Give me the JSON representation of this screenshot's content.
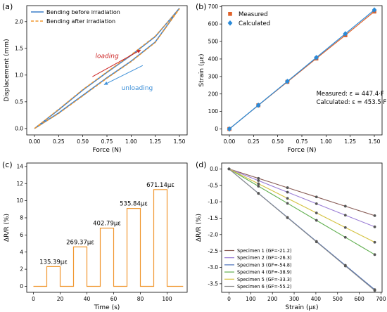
{
  "chart_data": [
    {
      "panel": "(a)",
      "type": "line",
      "xlabel": "Force (N)",
      "ylabel": "Displacement (mm)",
      "xlim": [
        -0.08,
        1.58
      ],
      "ylim": [
        -0.12,
        2.3
      ],
      "xticks": [
        0.0,
        0.25,
        0.5,
        0.75,
        1.0,
        1.25,
        1.5
      ],
      "xtick_labels": [
        "0.00",
        "0.25",
        "0.50",
        "0.75",
        "1.00",
        "1.25",
        "1.50"
      ],
      "yticks": [
        0.0,
        0.5,
        1.0,
        1.5,
        2.0
      ],
      "ytick_labels": [
        "0.0",
        "0.5",
        "1.0",
        "1.5",
        "2.0"
      ],
      "legend_position": "top-left",
      "series": [
        {
          "name": "Bending before irradiation",
          "color": "#3c7fc8",
          "dash": "solid",
          "x": [
            0,
            0.25,
            0.5,
            0.75,
            1.0,
            1.25,
            1.5,
            1.25,
            1.0,
            0.75,
            0.5,
            0.25,
            0
          ],
          "y": [
            0,
            0.35,
            0.72,
            1.05,
            1.37,
            1.72,
            2.25,
            1.62,
            1.26,
            0.95,
            0.62,
            0.29,
            0
          ]
        },
        {
          "name": "Bending after irradiation",
          "color": "#f0962d",
          "dash": "dashed",
          "x": [
            0,
            0.25,
            0.5,
            0.75,
            1.0,
            1.25,
            1.5,
            1.25,
            1.0,
            0.75,
            0.5,
            0.25,
            0
          ],
          "y": [
            0,
            0.36,
            0.73,
            1.06,
            1.38,
            1.73,
            2.24,
            1.61,
            1.25,
            0.94,
            0.61,
            0.28,
            0
          ]
        }
      ],
      "annotations": [
        {
          "text": "loading",
          "color": "#cc2222",
          "style": "italic",
          "x": 0.63,
          "y": 1.32,
          "arrow_from": [
            0.6,
            0.97
          ],
          "arrow_to": [
            1.1,
            1.47
          ]
        },
        {
          "text": "unloading",
          "color": "#3c8fd8",
          "style": "normal",
          "x": 0.9,
          "y": 0.72,
          "arrow_from": [
            1.12,
            1.18
          ],
          "arrow_to": [
            0.72,
            0.82
          ]
        }
      ]
    },
    {
      "panel": "(b)",
      "type": "scatter",
      "xlabel": "Force (N)",
      "ylabel": "Strain (με)",
      "xlim": [
        -0.08,
        1.58
      ],
      "ylim": [
        -34,
        705
      ],
      "xticks": [
        0.0,
        0.25,
        0.5,
        0.75,
        1.0,
        1.25,
        1.5
      ],
      "xtick_labels": [
        "0.00",
        "0.25",
        "0.50",
        "0.75",
        "1.00",
        "1.25",
        "1.50"
      ],
      "yticks": [
        0,
        100,
        200,
        300,
        400,
        500,
        600,
        700
      ],
      "ytick_labels": [
        "0",
        "100",
        "200",
        "300",
        "400",
        "500",
        "600",
        "700"
      ],
      "legend_position": "top-left",
      "series": [
        {
          "name": "Measured",
          "color": "#e0622a",
          "marker": "square",
          "x": [
            0,
            0.3,
            0.6,
            0.9,
            1.2,
            1.5
          ],
          "y": [
            0,
            135.39,
            269.37,
            402.79,
            535.84,
            671.14
          ]
        },
        {
          "name": "Calculated",
          "color": "#2a8ad8",
          "marker": "diamond",
          "x": [
            0,
            0.3,
            0.6,
            0.9,
            1.2,
            1.5
          ],
          "y": [
            0,
            136.1,
            272.1,
            408.2,
            544.2,
            680.3
          ]
        }
      ],
      "annotations": [
        {
          "text": "Measured: ε = 447.4·F",
          "x": 0.9,
          "y": 190
        },
        {
          "text": "Calculated: ε = 453.5·F",
          "x": 0.9,
          "y": 143
        }
      ]
    },
    {
      "panel": "(c)",
      "type": "line",
      "xlabel": "Time (s)",
      "ylabel": "ΔR/R (%)",
      "xlim": [
        -5,
        115
      ],
      "ylim": [
        -0.7,
        14.4
      ],
      "xticks": [
        0,
        20,
        40,
        60,
        80,
        100
      ],
      "xtick_labels": [
        "0",
        "20",
        "40",
        "60",
        "80",
        "100"
      ],
      "yticks": [
        0,
        2,
        4,
        6,
        8,
        10,
        12,
        14
      ],
      "ytick_labels": [
        "0",
        "2",
        "4",
        "6",
        "8",
        "10",
        "12",
        "14"
      ],
      "series": [
        {
          "name": "",
          "color": "#f0962d",
          "steps": [
            {
              "start": 10,
              "end": 20,
              "value": 2.3
            },
            {
              "start": 30,
              "end": 40,
              "value": 4.6
            },
            {
              "start": 50,
              "end": 60,
              "value": 6.8
            },
            {
              "start": 70,
              "end": 80,
              "value": 9.1
            },
            {
              "start": 90,
              "end": 100,
              "value": 11.3
            }
          ],
          "x_end": 112
        }
      ],
      "annotations": [
        {
          "text": "135.39με",
          "x": 15,
          "y": 2.3
        },
        {
          "text": "269.37με",
          "x": 35,
          "y": 4.6
        },
        {
          "text": "402.79με",
          "x": 55,
          "y": 6.8
        },
        {
          "text": "535.84με",
          "x": 75,
          "y": 9.1
        },
        {
          "text": "671.14με",
          "x": 95,
          "y": 11.3
        }
      ]
    },
    {
      "panel": "(d)",
      "type": "line",
      "xlabel": "Strain (με)",
      "ylabel": "ΔR/R (%)",
      "xlim": [
        -34,
        705
      ],
      "ylim": [
        -3.76,
        0.18
      ],
      "xticks": [
        0,
        100,
        200,
        300,
        400,
        500,
        600,
        700
      ],
      "xtick_labels": [
        "0",
        "100",
        "200",
        "300",
        "400",
        "500",
        "600",
        "700"
      ],
      "yticks": [
        0.0,
        -0.5,
        -1.0,
        -1.5,
        -2.0,
        -2.5,
        -3.0,
        -3.5
      ],
      "ytick_labels": [
        "0.0",
        "-0.5",
        "-1.0",
        "-1.5",
        "-2.0",
        "-2.5",
        "-3.0",
        "-3.5"
      ],
      "legend_position": "bottom-left",
      "x": [
        0,
        135.39,
        269.37,
        402.79,
        535.84,
        671.14
      ],
      "series": [
        {
          "name": "Specimen 1 (GF=-21.2)",
          "color": "#8a5e58",
          "gf": -21.2
        },
        {
          "name": "Specimen 2 (GF=-26.3)",
          "color": "#9b7ed6",
          "gf": -26.3
        },
        {
          "name": "Specimen 3 (GF=-54.8)",
          "color": "#4a6fb8",
          "gf": -54.8
        },
        {
          "name": "Specimen 4 (GF=-38.9)",
          "color": "#5fae4e",
          "gf": -38.9
        },
        {
          "name": "Specimen 5 (GF=-33.3)",
          "color": "#d4c240",
          "gf": -33.3
        },
        {
          "name": "Specimen 6 (GF=-55.2)",
          "color": "#8a8a8a",
          "gf": -55.2
        }
      ]
    }
  ]
}
